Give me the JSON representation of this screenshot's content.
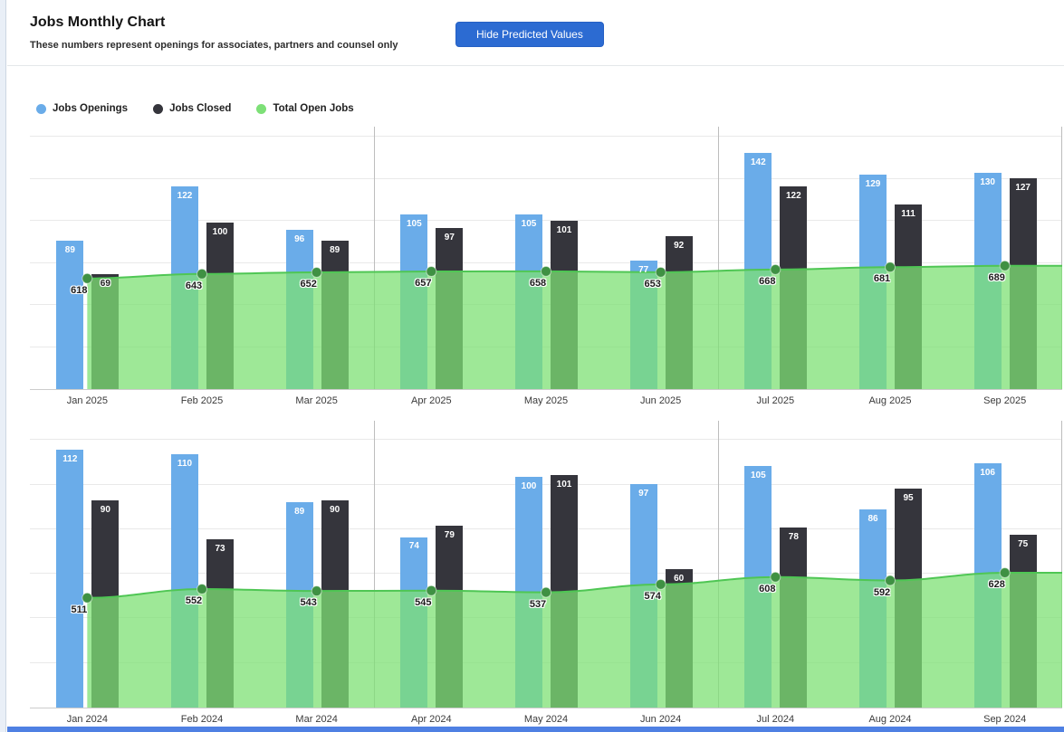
{
  "header": {
    "title": "Jobs Monthly Chart",
    "subtitle": "These numbers represent openings for associates, partners and counsel only",
    "button_label": "Hide Predicted Values"
  },
  "legend": [
    {
      "label": "Jobs Openings",
      "color": "#6aace9"
    },
    {
      "label": "Jobs Closed",
      "color": "#35353c"
    },
    {
      "label": "Total Open Jobs",
      "color": "#7de077"
    }
  ],
  "colors": {
    "openings_bar": "#6aace9",
    "closed_bar": "#35353c",
    "area_fill": "rgba(126,224,116,0.75)",
    "area_line": "#4fc654",
    "area_point": "#3f9143",
    "button": "#2c6bd2",
    "bottom_strip": "#4f80e3"
  },
  "chart_data": [
    {
      "id": "chart-2025",
      "type": "bar+area",
      "grid": true,
      "y_axis_labels": false,
      "categories": [
        "Jan 2025",
        "Feb 2025",
        "Mar 2025",
        "Apr 2025",
        "May 2025",
        "Jun 2025",
        "Jul 2025",
        "Aug 2025",
        "Sep 2025"
      ],
      "series": [
        {
          "name": "Jobs Openings",
          "type": "bar",
          "color": "#6aace9",
          "values": [
            89,
            122,
            96,
            105,
            105,
            77,
            142,
            129,
            130
          ]
        },
        {
          "name": "Jobs Closed",
          "type": "bar",
          "color": "#35353c",
          "values": [
            69,
            100,
            89,
            97,
            101,
            92,
            122,
            111,
            127
          ]
        },
        {
          "name": "Total Open Jobs",
          "type": "area",
          "color": "#7de077",
          "values": [
            618,
            643,
            652,
            657,
            658,
            653,
            668,
            681,
            689
          ]
        }
      ]
    },
    {
      "id": "chart-2024",
      "type": "bar+area",
      "grid": true,
      "y_axis_labels": false,
      "categories": [
        "Jan 2024",
        "Feb 2024",
        "Mar 2024",
        "Apr 2024",
        "May 2024",
        "Jun 2024",
        "Jul 2024",
        "Aug 2024",
        "Sep 2024"
      ],
      "series": [
        {
          "name": "Jobs Openings",
          "type": "bar",
          "color": "#6aace9",
          "values": [
            112,
            110,
            89,
            74,
            100,
            97,
            105,
            86,
            106
          ]
        },
        {
          "name": "Jobs Closed",
          "type": "bar",
          "color": "#35353c",
          "values": [
            90,
            73,
            90,
            79,
            101,
            60,
            78,
            95,
            75
          ]
        },
        {
          "name": "Total Open Jobs",
          "type": "area",
          "color": "#7de077",
          "values": [
            511,
            552,
            543,
            545,
            537,
            574,
            608,
            592,
            628
          ]
        }
      ]
    }
  ]
}
